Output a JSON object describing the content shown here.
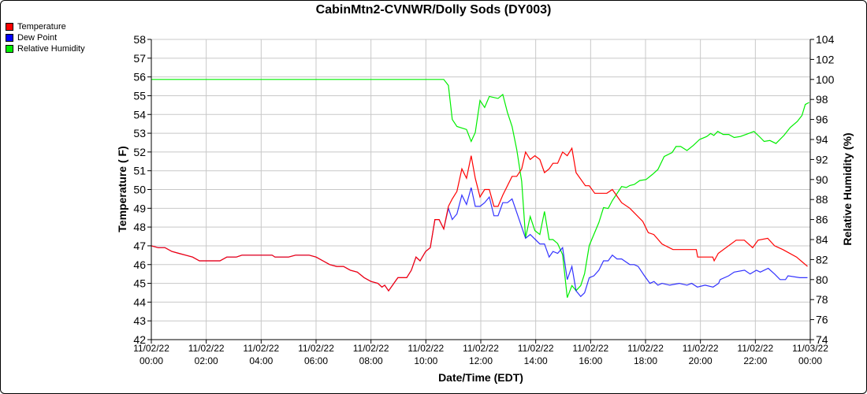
{
  "chart_data": {
    "type": "line",
    "title": "CabinMtn2-CVNWR/Dolly Sods (DY003)",
    "xlabel": "Date/Time (EDT)",
    "ylabel": "Temperature ( F)",
    "y2label": "Relative Humidity (%)",
    "xlim_hours": [
      0,
      24
    ],
    "ylim": [
      42,
      58
    ],
    "y2lim": [
      74,
      104
    ],
    "grid": true,
    "legend_position": "top-left",
    "y_ticks": [
      "42",
      "43",
      "44",
      "45",
      "46",
      "47",
      "48",
      "49",
      "50",
      "51",
      "52",
      "53",
      "54",
      "55",
      "56",
      "57",
      "58"
    ],
    "y2_ticks": [
      "74",
      "76",
      "78",
      "80",
      "82",
      "84",
      "86",
      "88",
      "90",
      "92",
      "94",
      "96",
      "98",
      "100",
      "102",
      "104"
    ],
    "x_ticks": [
      {
        "date": "11/02/22",
        "time": "00:00"
      },
      {
        "date": "11/02/22",
        "time": "02:00"
      },
      {
        "date": "11/02/22",
        "time": "04:00"
      },
      {
        "date": "11/02/22",
        "time": "06:00"
      },
      {
        "date": "11/02/22",
        "time": "08:00"
      },
      {
        "date": "11/02/22",
        "time": "10:00"
      },
      {
        "date": "11/02/22",
        "time": "12:00"
      },
      {
        "date": "11/02/22",
        "time": "14:00"
      },
      {
        "date": "11/02/22",
        "time": "16:00"
      },
      {
        "date": "11/02/22",
        "time": "18:00"
      },
      {
        "date": "11/02/22",
        "time": "20:00"
      },
      {
        "date": "11/02/22",
        "time": "22:00"
      },
      {
        "date": "11/03/22",
        "time": "00:00"
      }
    ],
    "series": [
      {
        "name": "Temperature",
        "color": "#ff0000",
        "axis": "left",
        "points": [
          [
            0,
            47.0
          ],
          [
            0.25,
            46.9
          ],
          [
            0.5,
            46.9
          ],
          [
            0.75,
            46.7
          ],
          [
            1,
            46.6
          ],
          [
            1.25,
            46.5
          ],
          [
            1.5,
            46.4
          ],
          [
            1.75,
            46.2
          ],
          [
            2.5,
            46.2
          ],
          [
            2.75,
            46.4
          ],
          [
            3.1,
            46.4
          ],
          [
            3.3,
            46.5
          ],
          [
            4.4,
            46.5
          ],
          [
            4.5,
            46.4
          ],
          [
            5.0,
            46.4
          ],
          [
            5.25,
            46.5
          ],
          [
            5.75,
            46.5
          ],
          [
            6.0,
            46.4
          ],
          [
            6.25,
            46.2
          ],
          [
            6.5,
            46.0
          ],
          [
            6.75,
            45.9
          ],
          [
            7.0,
            45.9
          ],
          [
            7.25,
            45.7
          ],
          [
            7.5,
            45.6
          ],
          [
            7.75,
            45.3
          ],
          [
            8.0,
            45.1
          ],
          [
            8.25,
            45.0
          ],
          [
            8.4,
            44.8
          ],
          [
            8.5,
            44.9
          ],
          [
            8.64,
            44.6
          ],
          [
            8.98,
            45.3
          ],
          [
            9.3,
            45.3
          ],
          [
            9.47,
            45.7
          ],
          [
            9.64,
            46.4
          ],
          [
            9.79,
            46.2
          ],
          [
            9.99,
            46.7
          ],
          [
            10.16,
            46.9
          ],
          [
            10.33,
            48.4
          ],
          [
            10.48,
            48.4
          ],
          [
            10.65,
            47.9
          ],
          [
            10.82,
            49.1
          ],
          [
            10.96,
            49.5
          ],
          [
            11.13,
            49.9
          ],
          [
            11.31,
            51.1
          ],
          [
            11.48,
            50.6
          ],
          [
            11.65,
            51.8
          ],
          [
            11.8,
            50.6
          ],
          [
            11.97,
            49.6
          ],
          [
            12.14,
            50.0
          ],
          [
            12.31,
            50.0
          ],
          [
            12.48,
            49.1
          ],
          [
            12.63,
            49.1
          ],
          [
            12.8,
            49.7
          ],
          [
            13.14,
            50.7
          ],
          [
            13.31,
            50.7
          ],
          [
            13.49,
            51.1
          ],
          [
            13.63,
            52.0
          ],
          [
            13.8,
            51.6
          ],
          [
            13.97,
            51.8
          ],
          [
            14.15,
            51.6
          ],
          [
            14.32,
            50.9
          ],
          [
            14.49,
            51.1
          ],
          [
            14.63,
            51.4
          ],
          [
            14.8,
            51.4
          ],
          [
            14.98,
            52.0
          ],
          [
            15.15,
            51.8
          ],
          [
            15.32,
            52.2
          ],
          [
            15.47,
            50.9
          ],
          [
            15.81,
            50.2
          ],
          [
            15.95,
            50.2
          ],
          [
            16.15,
            49.8
          ],
          [
            16.59,
            49.8
          ],
          [
            16.79,
            50.0
          ],
          [
            17.13,
            49.3
          ],
          [
            17.43,
            49.0
          ],
          [
            17.9,
            48.3
          ],
          [
            18.1,
            47.7
          ],
          [
            18.3,
            47.6
          ],
          [
            18.6,
            47.1
          ],
          [
            19.0,
            46.8
          ],
          [
            19.85,
            46.8
          ],
          [
            19.9,
            46.4
          ],
          [
            20.45,
            46.4
          ],
          [
            20.5,
            46.2
          ],
          [
            20.65,
            46.6
          ],
          [
            21.3,
            47.3
          ],
          [
            21.6,
            47.3
          ],
          [
            21.9,
            46.9
          ],
          [
            22.1,
            47.3
          ],
          [
            22.45,
            47.4
          ],
          [
            22.7,
            47.0
          ],
          [
            23.0,
            46.8
          ],
          [
            23.5,
            46.4
          ],
          [
            23.9,
            45.9
          ]
        ]
      },
      {
        "name": "Dew Point",
        "color": "#0000ff",
        "axis": "left",
        "points": [
          [
            0,
            47.0
          ],
          [
            0.25,
            46.9
          ],
          [
            0.5,
            46.9
          ],
          [
            0.75,
            46.7
          ],
          [
            1,
            46.6
          ],
          [
            1.25,
            46.5
          ],
          [
            1.5,
            46.4
          ],
          [
            1.75,
            46.2
          ],
          [
            2.5,
            46.2
          ],
          [
            2.75,
            46.4
          ],
          [
            3.1,
            46.4
          ],
          [
            3.3,
            46.5
          ],
          [
            4.4,
            46.5
          ],
          [
            4.5,
            46.4
          ],
          [
            5.0,
            46.4
          ],
          [
            5.25,
            46.5
          ],
          [
            5.75,
            46.5
          ],
          [
            6.0,
            46.4
          ],
          [
            6.25,
            46.2
          ],
          [
            6.5,
            46.0
          ],
          [
            6.75,
            45.9
          ],
          [
            7.0,
            45.9
          ],
          [
            7.25,
            45.7
          ],
          [
            7.5,
            45.6
          ],
          [
            7.75,
            45.3
          ],
          [
            8.0,
            45.1
          ],
          [
            8.25,
            45.0
          ],
          [
            8.4,
            44.8
          ],
          [
            8.5,
            44.9
          ],
          [
            8.64,
            44.6
          ],
          [
            8.98,
            45.3
          ],
          [
            9.3,
            45.3
          ],
          [
            9.47,
            45.7
          ],
          [
            9.64,
            46.4
          ],
          [
            9.79,
            46.2
          ],
          [
            9.99,
            46.7
          ],
          [
            10.16,
            46.9
          ],
          [
            10.33,
            48.4
          ],
          [
            10.48,
            48.4
          ],
          [
            10.65,
            47.9
          ],
          [
            10.82,
            49.0
          ],
          [
            10.96,
            48.4
          ],
          [
            11.13,
            48.7
          ],
          [
            11.31,
            49.7
          ],
          [
            11.48,
            49.2
          ],
          [
            11.65,
            50.1
          ],
          [
            11.8,
            49.1
          ],
          [
            11.97,
            49.1
          ],
          [
            12.14,
            49.3
          ],
          [
            12.31,
            49.6
          ],
          [
            12.48,
            48.6
          ],
          [
            12.63,
            48.6
          ],
          [
            12.8,
            49.3
          ],
          [
            12.97,
            49.3
          ],
          [
            13.14,
            49.5
          ],
          [
            13.63,
            47.4
          ],
          [
            13.8,
            47.6
          ],
          [
            14.15,
            47.1
          ],
          [
            14.32,
            47.1
          ],
          [
            14.49,
            46.4
          ],
          [
            14.63,
            46.7
          ],
          [
            14.8,
            46.6
          ],
          [
            14.98,
            46.9
          ],
          [
            15.15,
            45.2
          ],
          [
            15.32,
            45.9
          ],
          [
            15.47,
            44.6
          ],
          [
            15.64,
            44.3
          ],
          [
            15.78,
            44.5
          ],
          [
            15.95,
            45.3
          ],
          [
            16.12,
            45.4
          ],
          [
            16.3,
            45.7
          ],
          [
            16.47,
            46.2
          ],
          [
            16.64,
            46.2
          ],
          [
            16.79,
            46.5
          ],
          [
            16.96,
            46.3
          ],
          [
            17.13,
            46.3
          ],
          [
            17.43,
            46.0
          ],
          [
            17.59,
            46.0
          ],
          [
            17.73,
            45.9
          ],
          [
            17.96,
            45.4
          ],
          [
            18.16,
            45.0
          ],
          [
            18.31,
            45.1
          ],
          [
            18.45,
            44.9
          ],
          [
            18.6,
            45.0
          ],
          [
            18.88,
            44.9
          ],
          [
            19.23,
            45.0
          ],
          [
            19.51,
            44.9
          ],
          [
            19.68,
            45.0
          ],
          [
            19.89,
            44.8
          ],
          [
            20.17,
            44.9
          ],
          [
            20.46,
            44.8
          ],
          [
            20.66,
            45.0
          ],
          [
            20.72,
            45.2
          ],
          [
            21.03,
            45.4
          ],
          [
            21.23,
            45.6
          ],
          [
            21.61,
            45.7
          ],
          [
            21.81,
            45.5
          ],
          [
            22.04,
            45.7
          ],
          [
            22.18,
            45.6
          ],
          [
            22.47,
            45.8
          ],
          [
            22.7,
            45.5
          ],
          [
            22.9,
            45.2
          ],
          [
            23.1,
            45.2
          ],
          [
            23.19,
            45.4
          ],
          [
            23.62,
            45.3
          ],
          [
            23.9,
            45.3
          ]
        ]
      },
      {
        "name": "Relative Humidity",
        "color": "#00ee00",
        "axis": "right",
        "points": [
          [
            0,
            100
          ],
          [
            10.65,
            100
          ],
          [
            10.82,
            99.4
          ],
          [
            10.96,
            96.0
          ],
          [
            11.13,
            95.3
          ],
          [
            11.48,
            95.0
          ],
          [
            11.65,
            93.8
          ],
          [
            11.8,
            94.7
          ],
          [
            11.97,
            97.9
          ],
          [
            12.14,
            97.2
          ],
          [
            12.31,
            98.3
          ],
          [
            12.63,
            98.1
          ],
          [
            12.8,
            98.5
          ],
          [
            12.97,
            96.7
          ],
          [
            13.14,
            95.3
          ],
          [
            13.31,
            93.0
          ],
          [
            13.49,
            89.8
          ],
          [
            13.63,
            84.2
          ],
          [
            13.8,
            86.3
          ],
          [
            13.97,
            84.9
          ],
          [
            14.15,
            84.5
          ],
          [
            14.32,
            86.8
          ],
          [
            14.49,
            84.0
          ],
          [
            14.63,
            84.0
          ],
          [
            14.8,
            83.6
          ],
          [
            14.98,
            82.5
          ],
          [
            15.15,
            78.2
          ],
          [
            15.32,
            79.4
          ],
          [
            15.47,
            78.9
          ],
          [
            15.64,
            79.4
          ],
          [
            15.78,
            80.6
          ],
          [
            15.95,
            83.4
          ],
          [
            16.3,
            85.7
          ],
          [
            16.47,
            87.2
          ],
          [
            16.64,
            87.1
          ],
          [
            16.79,
            87.9
          ],
          [
            17.13,
            89.3
          ],
          [
            17.3,
            89.2
          ],
          [
            17.43,
            89.4
          ],
          [
            17.59,
            89.5
          ],
          [
            17.79,
            89.9
          ],
          [
            18.02,
            90.0
          ],
          [
            18.25,
            90.5
          ],
          [
            18.45,
            91.0
          ],
          [
            18.68,
            92.3
          ],
          [
            18.97,
            92.7
          ],
          [
            19.11,
            93.3
          ],
          [
            19.28,
            93.3
          ],
          [
            19.51,
            92.9
          ],
          [
            19.74,
            93.4
          ],
          [
            19.97,
            94.0
          ],
          [
            20.23,
            94.3
          ],
          [
            20.37,
            94.6
          ],
          [
            20.49,
            94.4
          ],
          [
            20.63,
            94.8
          ],
          [
            20.83,
            94.5
          ],
          [
            21.03,
            94.5
          ],
          [
            21.23,
            94.2
          ],
          [
            21.46,
            94.3
          ],
          [
            21.75,
            94.6
          ],
          [
            21.95,
            94.8
          ],
          [
            22.18,
            94.2
          ],
          [
            22.32,
            93.8
          ],
          [
            22.53,
            93.9
          ],
          [
            22.75,
            93.6
          ],
          [
            23.04,
            94.4
          ],
          [
            23.27,
            95.2
          ],
          [
            23.53,
            95.8
          ],
          [
            23.7,
            96.4
          ],
          [
            23.82,
            97.5
          ],
          [
            23.96,
            97.7
          ]
        ]
      }
    ]
  }
}
